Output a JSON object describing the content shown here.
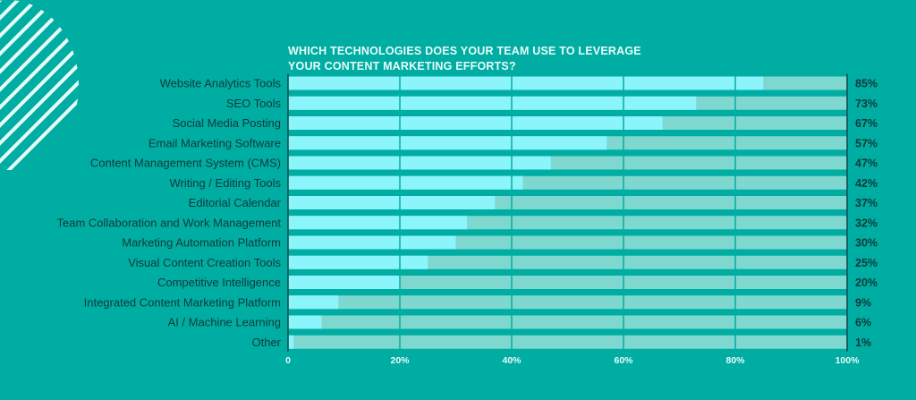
{
  "chart_data": {
    "type": "bar",
    "orientation": "horizontal",
    "title": "WHICH TECHNOLOGIES DOES YOUR TEAM USE TO LEVERAGE YOUR CONTENT MARKETING EFFORTS?",
    "title_lines": [
      "WHICH TECHNOLOGIES DOES YOUR TEAM USE TO LEVERAGE",
      "YOUR CONTENT MARKETING EFFORTS?"
    ],
    "categories": [
      "Website Analytics Tools",
      "SEO Tools",
      "Social Media Posting",
      "Email Marketing Software",
      "Content Management System (CMS)",
      "Writing / Editing Tools",
      "Editorial Calendar",
      "Team Collaboration and Work Management",
      "Marketing Automation Platform",
      "Visual Content Creation Tools",
      "Competitive Intelligence",
      "Integrated Content Marketing Platform",
      "AI / Machine Learning",
      "Other"
    ],
    "values": [
      85,
      73,
      67,
      57,
      47,
      42,
      37,
      32,
      30,
      25,
      20,
      9,
      6,
      1
    ],
    "value_labels": [
      "85%",
      "73%",
      "67%",
      "57%",
      "47%",
      "42%",
      "37%",
      "32%",
      "30%",
      "25%",
      "20%",
      "9%",
      "6%",
      "1%"
    ],
    "xlim": [
      0,
      100
    ],
    "x_ticks": [
      0,
      20,
      40,
      60,
      80,
      100
    ],
    "x_tick_labels": [
      "0",
      "20%",
      "40%",
      "60%",
      "80%",
      "100%"
    ],
    "xlabel": "",
    "ylabel": "",
    "grid": true,
    "legend": "none",
    "colors": {
      "background": "#00ada3",
      "bar": "#8cf4fb",
      "track": "#7fd8d0",
      "label": "#0d3a3a",
      "tick": "#e8fbf9"
    }
  }
}
